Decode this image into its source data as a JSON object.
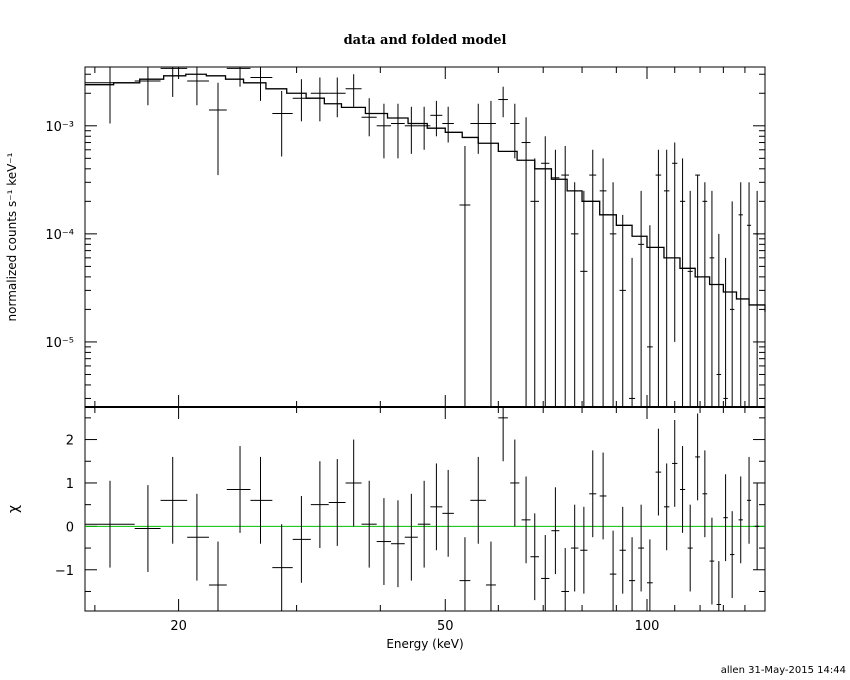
{
  "chart_data": {
    "type": "scatter",
    "title": "data and folded model",
    "xlabel": "Energy (keV)",
    "xscale": "log",
    "xlim": [
      14.5,
      150
    ],
    "x_ticks": [
      20,
      50,
      100
    ],
    "footer": "allen 31-May-2015 14:44",
    "top_panel": {
      "ylabel": "normalized counts s⁻¹ keV⁻¹",
      "yscale": "log",
      "ylim": [
        2.5e-06,
        0.0035
      ],
      "y_ticks": [
        {
          "value": 0.001,
          "label": "10⁻³"
        },
        {
          "value": 0.0001,
          "label": "10⁻⁴"
        },
        {
          "value": 1e-05,
          "label": "10⁻⁵"
        }
      ],
      "data": [
        {
          "x": 15.8,
          "xlo": 14.5,
          "xhi": 17.2,
          "y": 0.0025,
          "ylo": 0.00105,
          "yhi": 0.0035
        },
        {
          "x": 18.0,
          "xlo": 17.2,
          "xhi": 18.8,
          "y": 0.0026,
          "ylo": 0.00155,
          "yhi": 0.0035
        },
        {
          "x": 19.6,
          "xlo": 18.8,
          "xhi": 20.6,
          "y": 0.0034,
          "ylo": 0.00185,
          "yhi": 0.0035
        },
        {
          "x": 21.3,
          "xlo": 20.6,
          "xhi": 22.2,
          "y": 0.0026,
          "ylo": 0.00155,
          "yhi": 0.0035
        },
        {
          "x": 22.9,
          "xlo": 22.2,
          "xhi": 23.6,
          "y": 0.0014,
          "ylo": 0.00035,
          "yhi": 0.0025
        },
        {
          "x": 24.7,
          "xlo": 23.6,
          "xhi": 25.6,
          "y": 0.0034,
          "ylo": 0.0023,
          "yhi": 0.0035
        },
        {
          "x": 26.5,
          "xlo": 25.6,
          "xhi": 27.6,
          "y": 0.0028,
          "ylo": 0.0017,
          "yhi": 0.0035
        },
        {
          "x": 28.5,
          "xlo": 27.6,
          "xhi": 29.6,
          "y": 0.0013,
          "ylo": 0.00052,
          "yhi": 0.0021
        },
        {
          "x": 30.5,
          "xlo": 29.6,
          "xhi": 31.5,
          "y": 0.0018,
          "ylo": 0.0011,
          "yhi": 0.0027
        },
        {
          "x": 32.5,
          "xlo": 31.5,
          "xhi": 33.5,
          "y": 0.002,
          "ylo": 0.0011,
          "yhi": 0.0028
        },
        {
          "x": 34.5,
          "xlo": 33.5,
          "xhi": 35.5,
          "y": 0.002,
          "ylo": 0.0012,
          "yhi": 0.0028
        },
        {
          "x": 36.5,
          "xlo": 35.5,
          "xhi": 37.5,
          "y": 0.0022,
          "ylo": 0.0015,
          "yhi": 0.003
        },
        {
          "x": 38.5,
          "xlo": 37.5,
          "xhi": 39.5,
          "y": 0.0012,
          "ylo": 0.0008,
          "yhi": 0.0018
        },
        {
          "x": 40.5,
          "xlo": 39.5,
          "xhi": 41.5,
          "y": 0.001,
          "ylo": 0.0005,
          "yhi": 0.0016
        },
        {
          "x": 42.5,
          "xlo": 41.5,
          "xhi": 43.5,
          "y": 0.00105,
          "ylo": 0.0005,
          "yhi": 0.0016
        },
        {
          "x": 44.5,
          "xlo": 43.5,
          "xhi": 45.5,
          "y": 0.001,
          "ylo": 0.00055,
          "yhi": 0.0015
        },
        {
          "x": 46.5,
          "xlo": 45.5,
          "xhi": 47.5,
          "y": 0.001,
          "ylo": 0.0006,
          "yhi": 0.0015
        },
        {
          "x": 48.5,
          "xlo": 47.5,
          "xhi": 49.5,
          "y": 0.00125,
          "ylo": 0.0008,
          "yhi": 0.0017
        },
        {
          "x": 50.5,
          "xlo": 49.5,
          "xhi": 51.5,
          "y": 0.00105,
          "ylo": 0.0007,
          "yhi": 0.0015
        },
        {
          "x": 53.5,
          "xlo": 52.5,
          "xhi": 54.5,
          "y": 0.000185,
          "ylo": 2.5e-06,
          "yhi": 0.00065
        },
        {
          "x": 56.0,
          "xlo": 54.5,
          "xhi": 57.5,
          "y": 0.00105,
          "ylo": 0.00055,
          "yhi": 0.0016
        },
        {
          "x": 58.5,
          "xlo": 57.5,
          "xhi": 59.5,
          "y": 0.00105,
          "ylo": 2.5e-06,
          "yhi": 0.0017
        },
        {
          "x": 61.0,
          "xlo": 60.0,
          "xhi": 62.0,
          "y": 0.00175,
          "ylo": 0.0012,
          "yhi": 0.0023
        },
        {
          "x": 63.5,
          "xlo": 62.5,
          "xhi": 64.5,
          "y": 0.00105,
          "ylo": 0.0005,
          "yhi": 0.0016
        },
        {
          "x": 66.0,
          "xlo": 65.0,
          "xhi": 67.0,
          "y": 0.0007,
          "ylo": 2.5e-06,
          "yhi": 0.0012
        },
        {
          "x": 68.0,
          "xlo": 67.0,
          "xhi": 69.0,
          "y": 0.0002,
          "ylo": 2.5e-06,
          "yhi": 0.0005
        },
        {
          "x": 70.5,
          "xlo": 69.5,
          "xhi": 71.5,
          "y": 0.00045,
          "ylo": 2.5e-06,
          "yhi": 0.0008
        },
        {
          "x": 73.0,
          "xlo": 72.0,
          "xhi": 74.0,
          "y": 0.00033,
          "ylo": 2.5e-06,
          "yhi": 0.0006
        },
        {
          "x": 75.5,
          "xlo": 74.5,
          "xhi": 76.5,
          "y": 0.00035,
          "ylo": 2.5e-06,
          "yhi": 0.00065
        },
        {
          "x": 78.0,
          "xlo": 77.0,
          "xhi": 79.0,
          "y": 0.0001,
          "ylo": 2.5e-06,
          "yhi": 0.0003
        },
        {
          "x": 80.5,
          "xlo": 79.5,
          "xhi": 81.5,
          "y": 4.5e-05,
          "ylo": 2.5e-06,
          "yhi": 0.00025
        },
        {
          "x": 83.0,
          "xlo": 82.0,
          "xhi": 84.0,
          "y": 0.00035,
          "ylo": 2.5e-06,
          "yhi": 0.0006
        },
        {
          "x": 86.0,
          "xlo": 85.0,
          "xhi": 87.0,
          "y": 0.00025,
          "ylo": 2.5e-06,
          "yhi": 0.0005
        },
        {
          "x": 89.0,
          "xlo": 88.0,
          "xhi": 90.0,
          "y": 0.0001,
          "ylo": 2.5e-06,
          "yhi": 0.0003
        },
        {
          "x": 92.0,
          "xlo": 91.0,
          "xhi": 93.0,
          "y": 3e-05,
          "ylo": 2.5e-06,
          "yhi": 0.00015
        },
        {
          "x": 95.0,
          "xlo": 94.0,
          "xhi": 96.0,
          "y": 3e-06,
          "ylo": 2.5e-06,
          "yhi": 6e-05
        },
        {
          "x": 98.0,
          "xlo": 97.0,
          "xhi": 99.0,
          "y": 8e-05,
          "ylo": 2.5e-06,
          "yhi": 0.00025
        },
        {
          "x": 101.0,
          "xlo": 100.0,
          "xhi": 102.0,
          "y": 9e-06,
          "ylo": 2.5e-06,
          "yhi": 0.00012
        },
        {
          "x": 104.0,
          "xlo": 103.0,
          "xhi": 105.0,
          "y": 0.00035,
          "ylo": 2.5e-06,
          "yhi": 0.0006
        },
        {
          "x": 107.0,
          "xlo": 106.0,
          "xhi": 108.0,
          "y": 0.00025,
          "ylo": 2.5e-06,
          "yhi": 0.0006
        },
        {
          "x": 110.0,
          "xlo": 109.0,
          "xhi": 111.0,
          "y": 0.00045,
          "ylo": 1e-05,
          "yhi": 0.0007
        },
        {
          "x": 113.0,
          "xlo": 112.0,
          "xhi": 114.0,
          "y": 0.0002,
          "ylo": 2.5e-06,
          "yhi": 0.0005
        },
        {
          "x": 116.0,
          "xlo": 115.0,
          "xhi": 117.0,
          "y": 4.5e-05,
          "ylo": 2.5e-06,
          "yhi": 0.00025
        },
        {
          "x": 119.0,
          "xlo": 118.0,
          "xhi": 120.0,
          "y": 0.00035,
          "ylo": 2.5e-06,
          "yhi": 0.00035
        },
        {
          "x": 122.0,
          "xlo": 121.0,
          "xhi": 123.0,
          "y": 0.0002,
          "ylo": 2.5e-06,
          "yhi": 0.0003
        },
        {
          "x": 125.0,
          "xlo": 124.0,
          "xhi": 126.0,
          "y": 6e-05,
          "ylo": 2.5e-06,
          "yhi": 0.00025
        },
        {
          "x": 128.0,
          "xlo": 127.0,
          "xhi": 129.0,
          "y": 5e-06,
          "ylo": 2.5e-06,
          "yhi": 0.0001
        },
        {
          "x": 131.0,
          "xlo": 130.0,
          "xhi": 132.0,
          "y": 3e-06,
          "ylo": 2.5e-06,
          "yhi": 6e-05
        },
        {
          "x": 134.0,
          "xlo": 133.0,
          "xhi": 135.0,
          "y": 2e-05,
          "ylo": 2.5e-06,
          "yhi": 0.0002
        },
        {
          "x": 138.0,
          "xlo": 137.0,
          "xhi": 139.0,
          "y": 0.00015,
          "ylo": 2.5e-06,
          "yhi": 0.0003
        },
        {
          "x": 142.0,
          "xlo": 141.0,
          "xhi": 143.0,
          "y": 0.00012,
          "ylo": 2.5e-06,
          "yhi": 0.0003
        },
        {
          "x": 146.0,
          "xlo": 145.0,
          "xhi": 147.0,
          "y": 0.0001,
          "ylo": 2.5e-06,
          "yhi": 0.00025
        }
      ],
      "model": [
        [
          14.5,
          0.0024
        ],
        [
          16.0,
          0.0025
        ],
        [
          17.5,
          0.0027
        ],
        [
          19.0,
          0.0029
        ],
        [
          20.5,
          0.003
        ],
        [
          22.0,
          0.0029
        ],
        [
          23.5,
          0.0027
        ],
        [
          25.0,
          0.0025
        ],
        [
          27.0,
          0.0022
        ],
        [
          29.0,
          0.002
        ],
        [
          31.0,
          0.0018
        ],
        [
          33.0,
          0.0016
        ],
        [
          35.0,
          0.00148
        ],
        [
          38.0,
          0.0013
        ],
        [
          41.0,
          0.00118
        ],
        [
          44.0,
          0.00105
        ],
        [
          47.0,
          0.00095
        ],
        [
          50.0,
          0.00087
        ],
        [
          53.0,
          0.00078
        ],
        [
          56.0,
          0.00069
        ],
        [
          60.0,
          0.00058
        ],
        [
          64.0,
          0.00048
        ],
        [
          68.0,
          0.0004
        ],
        [
          72.0,
          0.00032
        ],
        [
          76.0,
          0.00025
        ],
        [
          80.0,
          0.0002
        ],
        [
          85.0,
          0.00015
        ],
        [
          90.0,
          0.00012
        ],
        [
          95.0,
          9.5e-05
        ],
        [
          100.0,
          7.5e-05
        ],
        [
          106.0,
          6e-05
        ],
        [
          112.0,
          4.8e-05
        ],
        [
          118.0,
          4e-05
        ],
        [
          124.0,
          3.4e-05
        ],
        [
          130.0,
          2.9e-05
        ],
        [
          136.0,
          2.5e-05
        ],
        [
          142.0,
          2.2e-05
        ],
        [
          150.0,
          1.9e-05
        ]
      ]
    },
    "bottom_panel": {
      "ylabel": "χ",
      "yscale": "linear",
      "ylim": [
        -1.95,
        2.75
      ],
      "y_ticks": [
        {
          "value": 2,
          "label": "2"
        },
        {
          "value": 1,
          "label": "1"
        },
        {
          "value": 0,
          "label": "0"
        },
        {
          "value": -1,
          "label": "−1"
        }
      ],
      "zero_line_color": "#00c000",
      "data": [
        {
          "x": 15.8,
          "xlo": 14.5,
          "xhi": 17.2,
          "y": 0.05,
          "ylo": -0.95,
          "yhi": 1.05
        },
        {
          "x": 18.0,
          "xlo": 17.2,
          "xhi": 18.8,
          "y": -0.05,
          "ylo": -1.05,
          "yhi": 0.95
        },
        {
          "x": 19.6,
          "xlo": 18.8,
          "xhi": 20.6,
          "y": 0.6,
          "ylo": -0.4,
          "yhi": 1.6
        },
        {
          "x": 21.3,
          "xlo": 20.6,
          "xhi": 22.2,
          "y": -0.25,
          "ylo": -1.25,
          "yhi": 0.75
        },
        {
          "x": 22.9,
          "xlo": 22.2,
          "xhi": 23.6,
          "y": -1.35,
          "ylo": -1.95,
          "yhi": -0.35
        },
        {
          "x": 24.7,
          "xlo": 23.6,
          "xhi": 25.6,
          "y": 0.85,
          "ylo": -0.15,
          "yhi": 1.85
        },
        {
          "x": 26.5,
          "xlo": 25.6,
          "xhi": 27.6,
          "y": 0.6,
          "ylo": -0.4,
          "yhi": 1.6
        },
        {
          "x": 28.5,
          "xlo": 27.6,
          "xhi": 29.6,
          "y": -0.95,
          "ylo": -1.95,
          "yhi": 0.05
        },
        {
          "x": 30.5,
          "xlo": 29.6,
          "xhi": 31.5,
          "y": -0.3,
          "ylo": -1.3,
          "yhi": 0.7
        },
        {
          "x": 32.5,
          "xlo": 31.5,
          "xhi": 33.5,
          "y": 0.5,
          "ylo": -0.5,
          "yhi": 1.5
        },
        {
          "x": 34.5,
          "xlo": 33.5,
          "xhi": 35.5,
          "y": 0.55,
          "ylo": -0.45,
          "yhi": 1.55
        },
        {
          "x": 36.5,
          "xlo": 35.5,
          "xhi": 37.5,
          "y": 1.0,
          "ylo": 0.0,
          "yhi": 2.0
        },
        {
          "x": 38.5,
          "xlo": 37.5,
          "xhi": 39.5,
          "y": 0.05,
          "ylo": -0.95,
          "yhi": 1.05
        },
        {
          "x": 40.5,
          "xlo": 39.5,
          "xhi": 41.5,
          "y": -0.35,
          "ylo": -1.35,
          "yhi": 0.65
        },
        {
          "x": 42.5,
          "xlo": 41.5,
          "xhi": 43.5,
          "y": -0.4,
          "ylo": -1.4,
          "yhi": 0.6
        },
        {
          "x": 44.5,
          "xlo": 43.5,
          "xhi": 45.5,
          "y": -0.25,
          "ylo": -1.25,
          "yhi": 0.75
        },
        {
          "x": 46.5,
          "xlo": 45.5,
          "xhi": 47.5,
          "y": 0.05,
          "ylo": -0.95,
          "yhi": 1.05
        },
        {
          "x": 48.5,
          "xlo": 47.5,
          "xhi": 49.5,
          "y": 0.45,
          "ylo": -0.55,
          "yhi": 1.45
        },
        {
          "x": 50.5,
          "xlo": 49.5,
          "xhi": 51.5,
          "y": 0.3,
          "ylo": -0.7,
          "yhi": 1.3
        },
        {
          "x": 53.5,
          "xlo": 52.5,
          "xhi": 54.5,
          "y": -1.25,
          "ylo": -1.95,
          "yhi": -0.25
        },
        {
          "x": 56.0,
          "xlo": 54.5,
          "xhi": 57.5,
          "y": 0.6,
          "ylo": -0.4,
          "yhi": 1.6
        },
        {
          "x": 58.5,
          "xlo": 57.5,
          "xhi": 59.5,
          "y": -1.35,
          "ylo": -1.95,
          "yhi": -0.35
        },
        {
          "x": 61.0,
          "xlo": 60.0,
          "xhi": 62.0,
          "y": 2.5,
          "ylo": 1.5,
          "yhi": 2.75
        },
        {
          "x": 63.5,
          "xlo": 62.5,
          "xhi": 64.5,
          "y": 1.0,
          "ylo": 0.0,
          "yhi": 2.0
        },
        {
          "x": 66.0,
          "xlo": 65.0,
          "xhi": 67.0,
          "y": 0.15,
          "ylo": -0.85,
          "yhi": 1.15
        },
        {
          "x": 68.0,
          "xlo": 67.0,
          "xhi": 69.0,
          "y": -0.7,
          "ylo": -1.7,
          "yhi": 0.3
        },
        {
          "x": 70.5,
          "xlo": 69.5,
          "xhi": 71.5,
          "y": -1.2,
          "ylo": -1.95,
          "yhi": -0.2
        },
        {
          "x": 73.0,
          "xlo": 72.0,
          "xhi": 74.0,
          "y": -0.1,
          "ylo": -1.1,
          "yhi": 0.9
        },
        {
          "x": 75.5,
          "xlo": 74.5,
          "xhi": 76.5,
          "y": -1.5,
          "ylo": -1.95,
          "yhi": -0.5
        },
        {
          "x": 78.0,
          "xlo": 77.0,
          "xhi": 79.0,
          "y": -0.5,
          "ylo": -1.5,
          "yhi": 0.5
        },
        {
          "x": 80.5,
          "xlo": 79.5,
          "xhi": 81.5,
          "y": -0.55,
          "ylo": -1.55,
          "yhi": 0.45
        },
        {
          "x": 83.0,
          "xlo": 82.0,
          "xhi": 84.0,
          "y": 0.75,
          "ylo": -0.25,
          "yhi": 1.75
        },
        {
          "x": 86.0,
          "xlo": 85.0,
          "xhi": 87.0,
          "y": 0.7,
          "ylo": -0.3,
          "yhi": 1.7
        },
        {
          "x": 89.0,
          "xlo": 88.0,
          "xhi": 90.0,
          "y": -1.1,
          "ylo": -1.95,
          "yhi": -0.1
        },
        {
          "x": 92.0,
          "xlo": 91.0,
          "xhi": 93.0,
          "y": -0.55,
          "ylo": -1.55,
          "yhi": 0.45
        },
        {
          "x": 95.0,
          "xlo": 94.0,
          "xhi": 96.0,
          "y": -1.25,
          "ylo": -1.95,
          "yhi": -0.25
        },
        {
          "x": 98.0,
          "xlo": 97.0,
          "xhi": 99.0,
          "y": -0.5,
          "ylo": -1.5,
          "yhi": 0.5
        },
        {
          "x": 101.0,
          "xlo": 100.0,
          "xhi": 102.0,
          "y": -1.3,
          "ylo": -1.95,
          "yhi": -0.3
        },
        {
          "x": 104.0,
          "xlo": 103.0,
          "xhi": 105.0,
          "y": 1.25,
          "ylo": 0.25,
          "yhi": 2.25
        },
        {
          "x": 107.0,
          "xlo": 106.0,
          "xhi": 108.0,
          "y": 0.45,
          "ylo": -0.55,
          "yhi": 1.45
        },
        {
          "x": 110.0,
          "xlo": 109.0,
          "xhi": 111.0,
          "y": 1.45,
          "ylo": 0.45,
          "yhi": 2.45
        },
        {
          "x": 113.0,
          "xlo": 112.0,
          "xhi": 114.0,
          "y": 0.85,
          "ylo": -0.15,
          "yhi": 1.85
        },
        {
          "x": 116.0,
          "xlo": 115.0,
          "xhi": 117.0,
          "y": -0.5,
          "ylo": -1.5,
          "yhi": 0.5
        },
        {
          "x": 119.0,
          "xlo": 118.0,
          "xhi": 120.0,
          "y": 1.6,
          "ylo": 0.6,
          "yhi": 2.6
        },
        {
          "x": 122.0,
          "xlo": 121.0,
          "xhi": 123.0,
          "y": 0.75,
          "ylo": -0.25,
          "yhi": 1.75
        },
        {
          "x": 125.0,
          "xlo": 124.0,
          "xhi": 126.0,
          "y": -0.8,
          "ylo": -1.8,
          "yhi": 0.2
        },
        {
          "x": 128.0,
          "xlo": 127.0,
          "xhi": 129.0,
          "y": -1.8,
          "ylo": -1.95,
          "yhi": -0.8
        },
        {
          "x": 131.0,
          "xlo": 130.0,
          "xhi": 132.0,
          "y": 0.2,
          "ylo": -0.8,
          "yhi": 1.2
        },
        {
          "x": 134.0,
          "xlo": 133.0,
          "xhi": 135.0,
          "y": -0.65,
          "ylo": -1.65,
          "yhi": 0.35
        },
        {
          "x": 138.0,
          "xlo": 137.0,
          "xhi": 139.0,
          "y": 0.15,
          "ylo": -0.85,
          "yhi": 1.15
        },
        {
          "x": 142.0,
          "xlo": 141.0,
          "xhi": 143.0,
          "y": 0.6,
          "ylo": -0.4,
          "yhi": 1.6
        },
        {
          "x": 146.0,
          "xlo": 145.0,
          "xhi": 147.0,
          "y": 0.0,
          "ylo": -1.0,
          "yhi": 1.0
        }
      ]
    }
  }
}
